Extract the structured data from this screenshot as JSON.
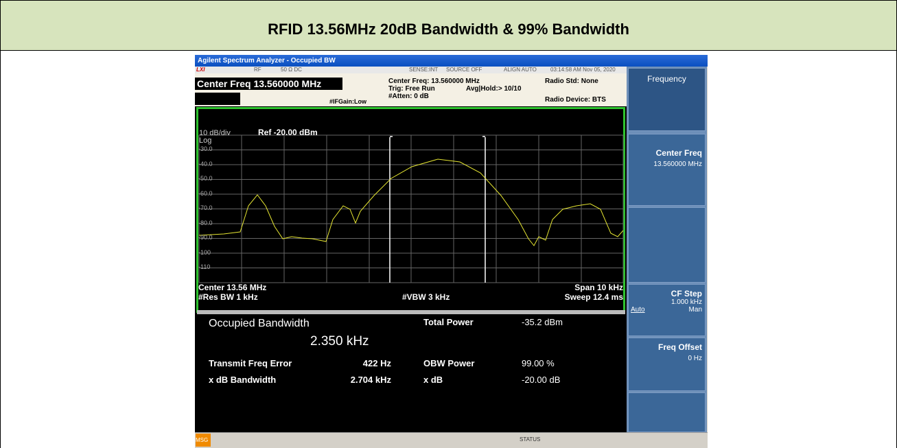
{
  "header": {
    "title": "RFID 13.56MHz 20dB Bandwidth & 99% Bandwidth"
  },
  "window": {
    "title": "Agilent Spectrum Analyzer - Occupied BW"
  },
  "status": {
    "lxi": "LXI",
    "rf": "RF",
    "impedance": "50 Ω  DC",
    "sense": "SENSE:INT",
    "source": "SOURCE OFF",
    "align": "ALIGN AUTO",
    "time": "03:14:58 AM Nov 05, 2020"
  },
  "meas": {
    "center": "Center Freq 13.560000 MHz",
    "ifgain": "#IFGain:Low",
    "center_info": "Center Freq: 13.560000 MHz",
    "trig": "Trig: Free Run",
    "avg": "Avg|Hold:> 10/10",
    "atten": "#Atten: 0 dB",
    "radio_std": "Radio Std: None",
    "radio_device": "Radio Device: BTS"
  },
  "graph": {
    "scale": "10 dB/div",
    "ref": "Ref -20.00 dBm",
    "log": "Log",
    "ylabels": [
      "-30.0",
      "-40.0",
      "-50.0",
      "-60.0",
      "-70.0",
      "-80.0",
      "-90.0",
      "-100",
      "-110"
    ],
    "center": "Center  13.56 MHz",
    "rbw": "#Res BW  1 kHz",
    "vbw": "#VBW  3 kHz",
    "span": "Span 10 kHz",
    "sweep": "Sweep  12.4 ms"
  },
  "results": {
    "obw_label": "Occupied Bandwidth",
    "obw_value": "2.350 kHz",
    "total_power_label": "Total Power",
    "total_power_value": "-35.2 dBm",
    "tfe_label": "Transmit Freq Error",
    "tfe_value": "422 Hz",
    "obw_power_label": "OBW Power",
    "obw_power_value": "99.00 %",
    "xdb_bw_label": "x dB Bandwidth",
    "xdb_bw_value": "2.704 kHz",
    "xdb_label": "x dB",
    "xdb_value": "-20.00 dB"
  },
  "softkeys": {
    "menu": "Frequency",
    "center_freq": "Center Freq",
    "center_freq_value": "13.560000 MHz",
    "cf_step": "CF Step",
    "cf_step_value": "1.000 kHz",
    "auto": "Auto",
    "man": "Man",
    "freq_offset": "Freq Offset",
    "freq_offset_value": "0 Hz"
  },
  "bottom": {
    "msg": "MSG",
    "status": "STATUS"
  }
}
